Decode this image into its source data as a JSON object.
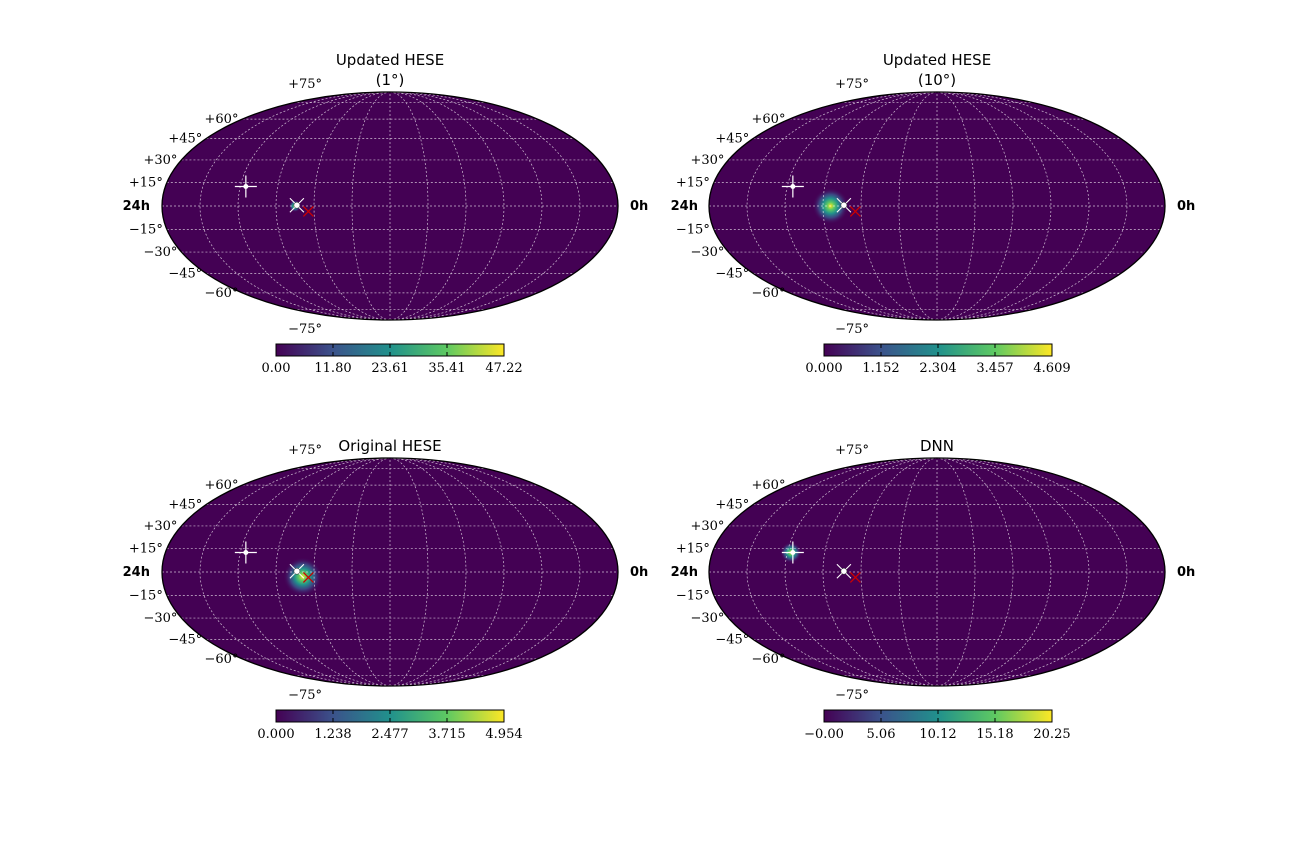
{
  "colors": {
    "background": "#440154",
    "grid": "#ffffff",
    "outline": "#000000",
    "source_marker": "#ffffff",
    "true_marker": "#cc0000",
    "colormap": [
      "#440154",
      "#3b528b",
      "#21918c",
      "#5ec962",
      "#fde725"
    ]
  },
  "chart_data": [
    {
      "type": "heatmap",
      "projection": "mollweide",
      "title": "Updated HESE",
      "subtitle": "(1°)",
      "ra_labels": {
        "left": "24h",
        "right": "0h"
      },
      "dec_labels": [
        "+75°",
        "+60°",
        "+45°",
        "+30°",
        "+15°",
        "−15°",
        "−30°",
        "−45°",
        "−60°",
        "−75°"
      ],
      "blob": {
        "ra_hours": 17.0,
        "dec_deg": 0.0,
        "sigma_deg": 1.5,
        "peak": 47.22
      },
      "markers": {
        "plus": {
          "ra_hours": 19.7,
          "dec_deg": 12.5
        },
        "dot": {
          "ra_hours": 16.9,
          "dec_deg": 0.5
        },
        "cross": {
          "ra_hours": 16.3,
          "dec_deg": -3.5
        }
      },
      "colorbar": {
        "min": 0.0,
        "max": 47.22,
        "ticks": [
          "0.00",
          "11.80",
          "23.61",
          "35.41",
          "47.22"
        ]
      }
    },
    {
      "type": "heatmap",
      "projection": "mollweide",
      "title": "Updated HESE",
      "subtitle": "(10°)",
      "ra_labels": {
        "left": "24h",
        "right": "0h"
      },
      "dec_labels": [
        "+75°",
        "+60°",
        "+45°",
        "+30°",
        "+15°",
        "−15°",
        "−30°",
        "−45°",
        "−60°",
        "−75°"
      ],
      "blob": {
        "ra_hours": 17.6,
        "dec_deg": 0.0,
        "sigma_deg": 4.5,
        "peak": 4.609
      },
      "markers": {
        "plus": {
          "ra_hours": 19.7,
          "dec_deg": 12.5
        },
        "dot": {
          "ra_hours": 16.9,
          "dec_deg": 0.5
        },
        "cross": {
          "ra_hours": 16.3,
          "dec_deg": -3.5
        }
      },
      "colorbar": {
        "min": 0.0,
        "max": 4.609,
        "ticks": [
          "0.000",
          "1.152",
          "2.304",
          "3.457",
          "4.609"
        ]
      }
    },
    {
      "type": "heatmap",
      "projection": "mollweide",
      "title": "Original HESE",
      "subtitle": "",
      "ra_labels": {
        "left": "24h",
        "right": "0h"
      },
      "dec_labels": [
        "+75°",
        "+60°",
        "+45°",
        "+30°",
        "+15°",
        "−15°",
        "−30°",
        "−45°",
        "−60°",
        "−75°"
      ],
      "blob": {
        "ra_hours": 16.6,
        "dec_deg": -3.0,
        "sigma_deg": 4.8,
        "peak": 4.954
      },
      "markers": {
        "plus": {
          "ra_hours": 19.7,
          "dec_deg": 12.5
        },
        "dot": {
          "ra_hours": 16.9,
          "dec_deg": 0.5
        },
        "cross": {
          "ra_hours": 16.3,
          "dec_deg": -3.5
        }
      },
      "colorbar": {
        "min": 0.0,
        "max": 4.954,
        "ticks": [
          "0.000",
          "1.238",
          "2.477",
          "3.715",
          "4.954"
        ]
      }
    },
    {
      "type": "heatmap",
      "projection": "mollweide",
      "title": "DNN",
      "subtitle": "",
      "ra_labels": {
        "left": "24h",
        "right": "0h"
      },
      "dec_labels": [
        "+75°",
        "+60°",
        "+45°",
        "+30°",
        "+15°",
        "−15°",
        "−30°",
        "−45°",
        "−60°",
        "−75°"
      ],
      "blob": {
        "ra_hours": 19.8,
        "dec_deg": 12.5,
        "sigma_deg": 2.6,
        "peak": 20.25
      },
      "markers": {
        "plus": {
          "ra_hours": 19.7,
          "dec_deg": 12.5
        },
        "dot": {
          "ra_hours": 16.9,
          "dec_deg": 0.5
        },
        "cross": {
          "ra_hours": 16.3,
          "dec_deg": -3.5
        }
      },
      "colorbar": {
        "min": -0.0,
        "max": 20.25,
        "ticks": [
          "−0.00",
          "5.06",
          "10.12",
          "15.18",
          "20.25"
        ]
      }
    }
  ]
}
